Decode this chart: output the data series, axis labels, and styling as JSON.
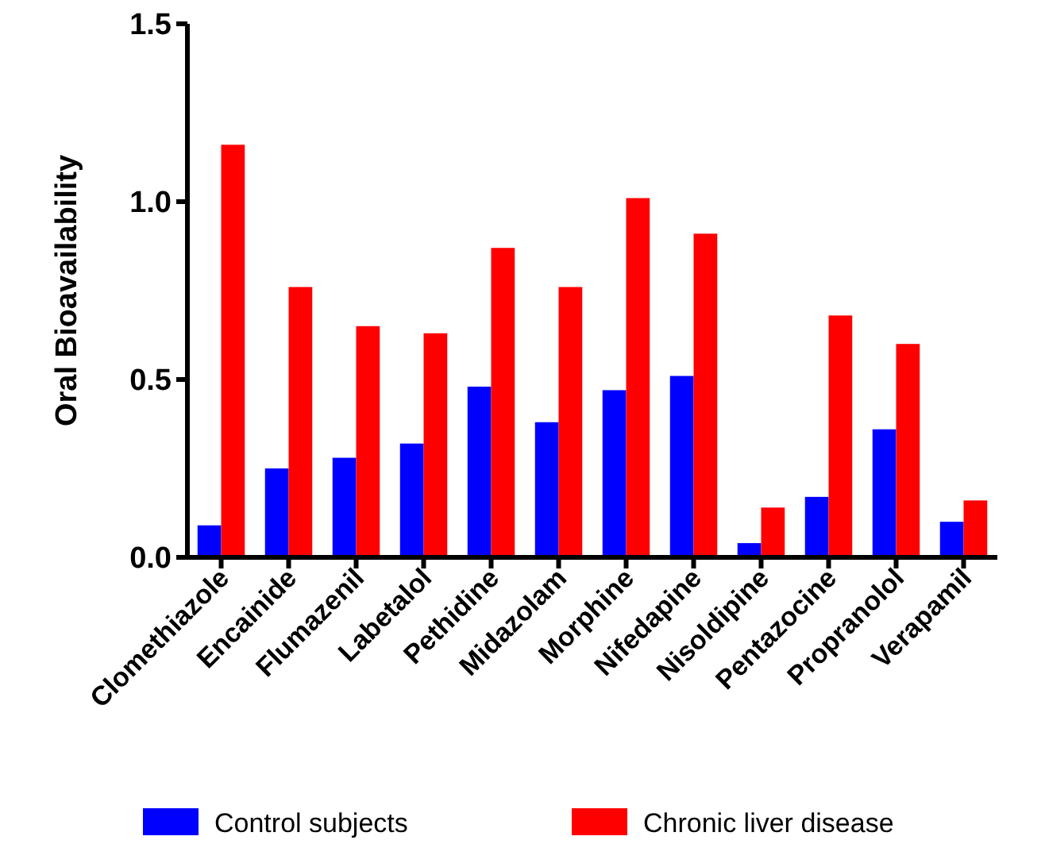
{
  "chart_data": {
    "type": "bar",
    "ylabel": "Oral Bioavailability",
    "categories": [
      "Clomethiazole",
      "Encainide",
      "Flumazenil",
      "Labetalol",
      "Pethidine",
      "Midazolam",
      "Morphine",
      "Nifedapine",
      "Nisoldipine",
      "Pentazocine",
      "Propranolol",
      "Verapamil"
    ],
    "series": [
      {
        "name": "Control subjects",
        "color": "#0000ff",
        "values": [
          0.09,
          0.25,
          0.28,
          0.32,
          0.48,
          0.38,
          0.47,
          0.51,
          0.04,
          0.17,
          0.36,
          0.1
        ]
      },
      {
        "name": "Chronic liver disease",
        "color": "#ff0000",
        "values": [
          1.16,
          0.76,
          0.65,
          0.63,
          0.87,
          0.76,
          1.01,
          0.91,
          0.14,
          0.68,
          0.6,
          0.16
        ]
      }
    ],
    "ylim": [
      0,
      1.5
    ],
    "yticks": [
      {
        "value": 0,
        "label": "0.0"
      },
      {
        "value": 0.5,
        "label": "0.5"
      },
      {
        "value": 1,
        "label": "1.0"
      },
      {
        "value": 1.5,
        "label": "1.5"
      }
    ],
    "legend": "bottom",
    "grid": false
  }
}
